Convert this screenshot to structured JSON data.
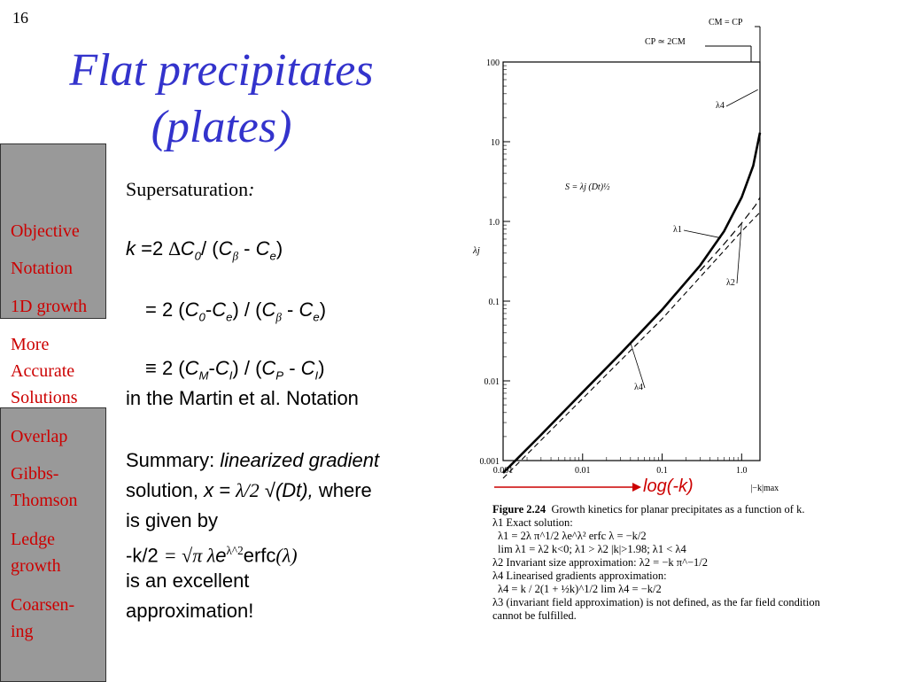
{
  "slide_number": "16",
  "title": {
    "line1": "Flat precipitates",
    "line2": "(plates)"
  },
  "sidebar": {
    "items": [
      {
        "label": "Objective"
      },
      {
        "label": "Notation"
      },
      {
        "label": "1D growth"
      },
      {
        "label": "More Accurate Solutions",
        "lines": [
          "More",
          "Accurate",
          "Solutions"
        ]
      },
      {
        "label": "Overlap"
      },
      {
        "label": "Gibbs-Thomson",
        "lines": [
          "Gibbs-",
          "Thomson"
        ]
      },
      {
        "label": "Ledge growth",
        "lines": [
          "Ledge",
          "growth"
        ]
      },
      {
        "label": "Coarsening",
        "lines": [
          "Coarsen-",
          "ing"
        ]
      }
    ]
  },
  "content": {
    "supersaturation": "Supersaturation",
    "martin_notation": "in the Martin et al. Notation",
    "summary_label": "Summary: ",
    "summary_emph": "linearized gradient",
    "solution_word": "solution, ",
    "where": " where",
    "given_by": "is given by",
    "excellent": "is an excellent",
    "approximation": "approximation!"
  },
  "chart_annotation": "log(-k)",
  "accent_red": "#cc0000",
  "title_blue": "#3333cc",
  "chart_data": {
    "type": "line",
    "xscale": "log",
    "yscale": "log",
    "xlim": [
      0.001,
      1.7
    ],
    "ylim": [
      0.001,
      100
    ],
    "x_ticks": [
      "0.001",
      "0.01",
      "0.1",
      "1.0"
    ],
    "y_ticks": [
      "0.001",
      "0.01",
      "0.1",
      "1.0",
      "10",
      "100"
    ],
    "ylabel": "λj",
    "xlabel": "|−k|max",
    "top_labels": [
      "CM = CP",
      "CP ≃ 2CM"
    ],
    "equation": "S = λj (Dt)½",
    "series": [
      {
        "name": "λ1",
        "x": [
          0.001,
          0.003,
          0.01,
          0.03,
          0.1,
          0.3,
          0.6,
          1.0,
          1.4,
          1.7
        ],
        "y": [
          0.0007,
          0.0021,
          0.0072,
          0.022,
          0.078,
          0.28,
          0.75,
          2.0,
          5.0,
          13.0
        ]
      },
      {
        "name": "λ2",
        "x": [
          0.3,
          0.6,
          1.0,
          1.5,
          1.7
        ],
        "y": [
          0.24,
          0.52,
          0.95,
          1.6,
          2.0
        ]
      },
      {
        "name": "λ4",
        "x": [
          0.001,
          0.01,
          0.1,
          0.5,
          1.0,
          1.7
        ],
        "y": [
          0.0006,
          0.006,
          0.06,
          0.35,
          0.75,
          1.3
        ]
      }
    ]
  },
  "caption": {
    "fig": "Figure 2.24",
    "fig_text": "Growth kinetics for planar precipitates as a function of k.",
    "l1": "λ1 Exact solution:",
    "l2": "λ1 = 2λ   π^1/2 λe^λ² erfc λ = −k/2",
    "l3": "lim λ1 = λ2   k<0; λ1 > λ2   |k|>1.98; λ1 < λ4",
    "l4": "λ2 Invariant size approximation: λ2 = −k π^−1/2",
    "l5": "λ4 Linearised gradients approximation:",
    "l6": "λ4 = k / 2(1 + ½k)^1/2    lim λ4 = −k/2",
    "l7": "λ3 (invariant field approximation) is not defined, as the far field condition",
    "l8": "cannot be fulfilled."
  }
}
